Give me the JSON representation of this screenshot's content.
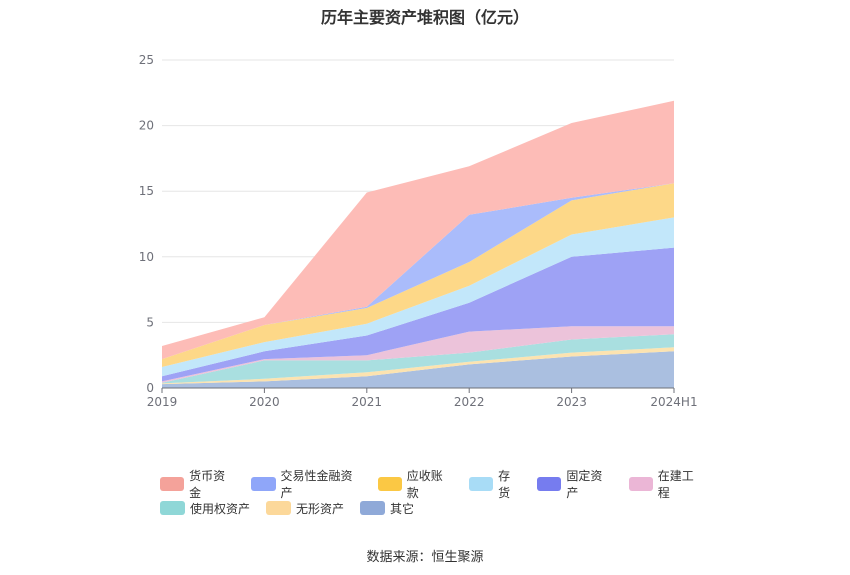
{
  "chart_data": {
    "type": "area",
    "stacked": true,
    "title": "历年主要资产堆积图（亿元）",
    "categories": [
      "2019",
      "2020",
      "2021",
      "2022",
      "2023",
      "2024H1"
    ],
    "ylim": [
      0,
      25
    ],
    "yticks": [
      0,
      5,
      10,
      15,
      20,
      25
    ],
    "grid": true,
    "legend_position": "bottom",
    "series": [
      {
        "name": "其它",
        "color": "#aabfe0",
        "values": [
          0.3,
          0.5,
          0.9,
          1.8,
          2.4,
          2.8
        ]
      },
      {
        "name": "无形资产",
        "color": "#fce3b0",
        "values": [
          0.05,
          0.2,
          0.3,
          0.2,
          0.3,
          0.3
        ]
      },
      {
        "name": "使用权资产",
        "color": "#a9dfe0",
        "values": [
          0.05,
          1.4,
          0.9,
          0.7,
          1.0,
          1.0
        ]
      },
      {
        "name": "在建工程",
        "color": "#ecc3da",
        "values": [
          0.1,
          0.1,
          0.4,
          1.6,
          1.0,
          0.6
        ]
      },
      {
        "name": "固定资产",
        "color": "#9ea2f5",
        "values": [
          0.4,
          0.6,
          1.5,
          2.2,
          5.3,
          6.0
        ]
      },
      {
        "name": "存货",
        "color": "#c2e7fa",
        "values": [
          0.7,
          0.7,
          0.9,
          1.3,
          1.7,
          2.3
        ]
      },
      {
        "name": "应收账款",
        "color": "#fdd888",
        "values": [
          0.6,
          1.3,
          1.2,
          1.8,
          2.6,
          2.6
        ]
      },
      {
        "name": "交易性金融资产",
        "color": "#aabcfb",
        "values": [
          0,
          0,
          0.1,
          3.6,
          0.2,
          0
        ]
      },
      {
        "name": "货币资金",
        "color": "#fdbcb7",
        "values": [
          1.0,
          0.6,
          8.7,
          3.7,
          5.7,
          6.3
        ]
      }
    ],
    "legend_order": [
      "货币资金",
      "交易性金融资产",
      "应收账款",
      "存货",
      "固定资产",
      "在建工程",
      "使用权资产",
      "无形资产",
      "其它"
    ],
    "legend_colors": {
      "货币资金": "#f4a29a",
      "交易性金融资产": "#8fa6f9",
      "应收账款": "#fbc844",
      "存货": "#a8dcf6",
      "固定资产": "#767cef",
      "在建工程": "#ebb6d6",
      "使用权资产": "#8fd7d7",
      "无形资产": "#fcd89a",
      "其它": "#8fa9d8"
    }
  },
  "source_note": "数据来源：恒生聚源"
}
